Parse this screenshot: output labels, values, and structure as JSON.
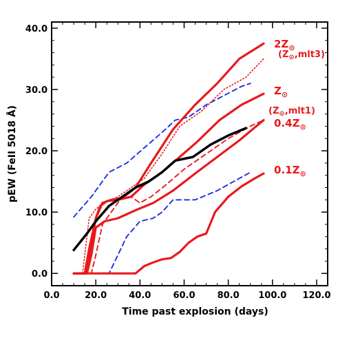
{
  "chart_data": {
    "type": "line",
    "xlabel": "Time past explosion (days)",
    "ylabel": "pEW (FeII 5018 Å)",
    "xlim": [
      0,
      125
    ],
    "ylim": [
      -2,
      41
    ],
    "xticks": [
      "0.0",
      "20.0",
      "40.0",
      "60.0",
      "80.0",
      "100.0",
      "120.0"
    ],
    "yticks": [
      "0.0",
      "10.0",
      "20.0",
      "30.0",
      "40.0"
    ],
    "grid": false,
    "series": [
      {
        "name": "2Z☉",
        "color": "#e8191c",
        "style": "solid",
        "x": [
          10,
          15,
          17,
          20,
          23,
          27,
          32,
          38,
          45,
          55,
          65,
          75,
          85,
          96
        ],
        "y": [
          0,
          0,
          4,
          9,
          11.5,
          12,
          12.3,
          14,
          18,
          23.5,
          27.5,
          31,
          35,
          37.5
        ]
      },
      {
        "name": "(Z☉,mlt3)",
        "color": "#e8191c",
        "style": "dotted",
        "x": [
          10,
          14,
          17,
          20,
          24,
          30,
          36,
          42,
          50,
          58,
          68,
          78,
          88,
          96
        ],
        "y": [
          0,
          0,
          9,
          10.5,
          11.5,
          12.5,
          14,
          15.5,
          19.5,
          24,
          26.5,
          30,
          32,
          35
        ]
      },
      {
        "name": "Z☉",
        "color": "#e8191c",
        "style": "solid",
        "x": [
          10,
          16,
          18,
          20,
          22,
          25,
          30,
          36,
          42,
          50,
          58,
          66,
          76,
          86,
          96
        ],
        "y": [
          0,
          0,
          5,
          9,
          11,
          11.8,
          12,
          12.5,
          14.5,
          16.5,
          19,
          21.5,
          25,
          27.5,
          29.3
        ]
      },
      {
        "name": "(Z☉,mlt1)",
        "color": "#e8191c",
        "style": "dashed",
        "x": [
          10,
          18,
          20,
          23,
          27,
          32,
          36,
          40,
          45,
          52,
          60,
          70,
          80,
          90,
          96
        ],
        "y": [
          0,
          0,
          3,
          8,
          10,
          12.5,
          12.5,
          11.5,
          12.5,
          14.5,
          17,
          19.5,
          22,
          24,
          25
        ]
      },
      {
        "name": "0.4Z☉",
        "color": "#e8191c",
        "style": "solid",
        "x": [
          10,
          16,
          18,
          20,
          24,
          30,
          38,
          46,
          55,
          65,
          75,
          85,
          96
        ],
        "y": [
          0,
          0,
          3,
          7.5,
          8.5,
          9,
          10.3,
          11.5,
          13.5,
          16.3,
          19,
          21.7,
          25
        ]
      },
      {
        "name": "0.1Z☉",
        "color": "#e8191c",
        "style": "solid",
        "x": [
          10,
          38,
          42,
          46,
          50,
          54,
          58,
          62,
          66,
          70,
          74,
          80,
          86,
          92,
          96
        ],
        "y": [
          0,
          0,
          1.2,
          1.8,
          2.3,
          2.5,
          3.5,
          5,
          6,
          6.5,
          10,
          12.5,
          14.2,
          15.5,
          16.3
        ]
      },
      {
        "name": "",
        "color": "#000000",
        "style": "solid",
        "x": [
          10,
          16,
          20,
          26,
          32,
          38,
          44,
          50,
          56,
          64,
          72,
          80,
          88
        ],
        "y": [
          3.8,
          6.5,
          8.5,
          11,
          12.5,
          14,
          15,
          16.5,
          18.4,
          19,
          21,
          22.5,
          23.7
        ]
      },
      {
        "name": "",
        "color": "#1c2fe0",
        "style": "dashed",
        "x": [
          10,
          18,
          26,
          34,
          42,
          50,
          56,
          62,
          70,
          78,
          86,
          90
        ],
        "y": [
          9.2,
          12.5,
          16.5,
          18,
          20.5,
          23,
          25,
          25.5,
          27.5,
          29,
          30.5,
          31
        ]
      },
      {
        "name": "",
        "color": "#1c2fe0",
        "style": "dashed",
        "x": [
          10,
          26,
          34,
          40,
          46,
          50,
          55,
          65,
          75,
          85,
          90
        ],
        "y": [
          0,
          0,
          6,
          8.5,
          9,
          10,
          12,
          12,
          13.5,
          15.5,
          16.5
        ]
      }
    ],
    "labels": [
      {
        "text": "2Z",
        "sub": "⊙",
        "color": "#e8191c",
        "size": "large"
      },
      {
        "text": "(Z",
        "sub": "⊙",
        "tail": ",mlt3)",
        "color": "#e8191c",
        "size": "small"
      },
      {
        "text": "Z",
        "sub": "⊙",
        "color": "#e8191c",
        "size": "large"
      },
      {
        "text": "(Z",
        "sub": "⊙",
        "tail": ",mlt1)",
        "color": "#e8191c",
        "size": "small"
      },
      {
        "text": "0.4Z",
        "sub": "⊙",
        "color": "#e8191c",
        "size": "large"
      },
      {
        "text": "0.1Z",
        "sub": "⊙",
        "color": "#e8191c",
        "size": "large"
      }
    ]
  }
}
